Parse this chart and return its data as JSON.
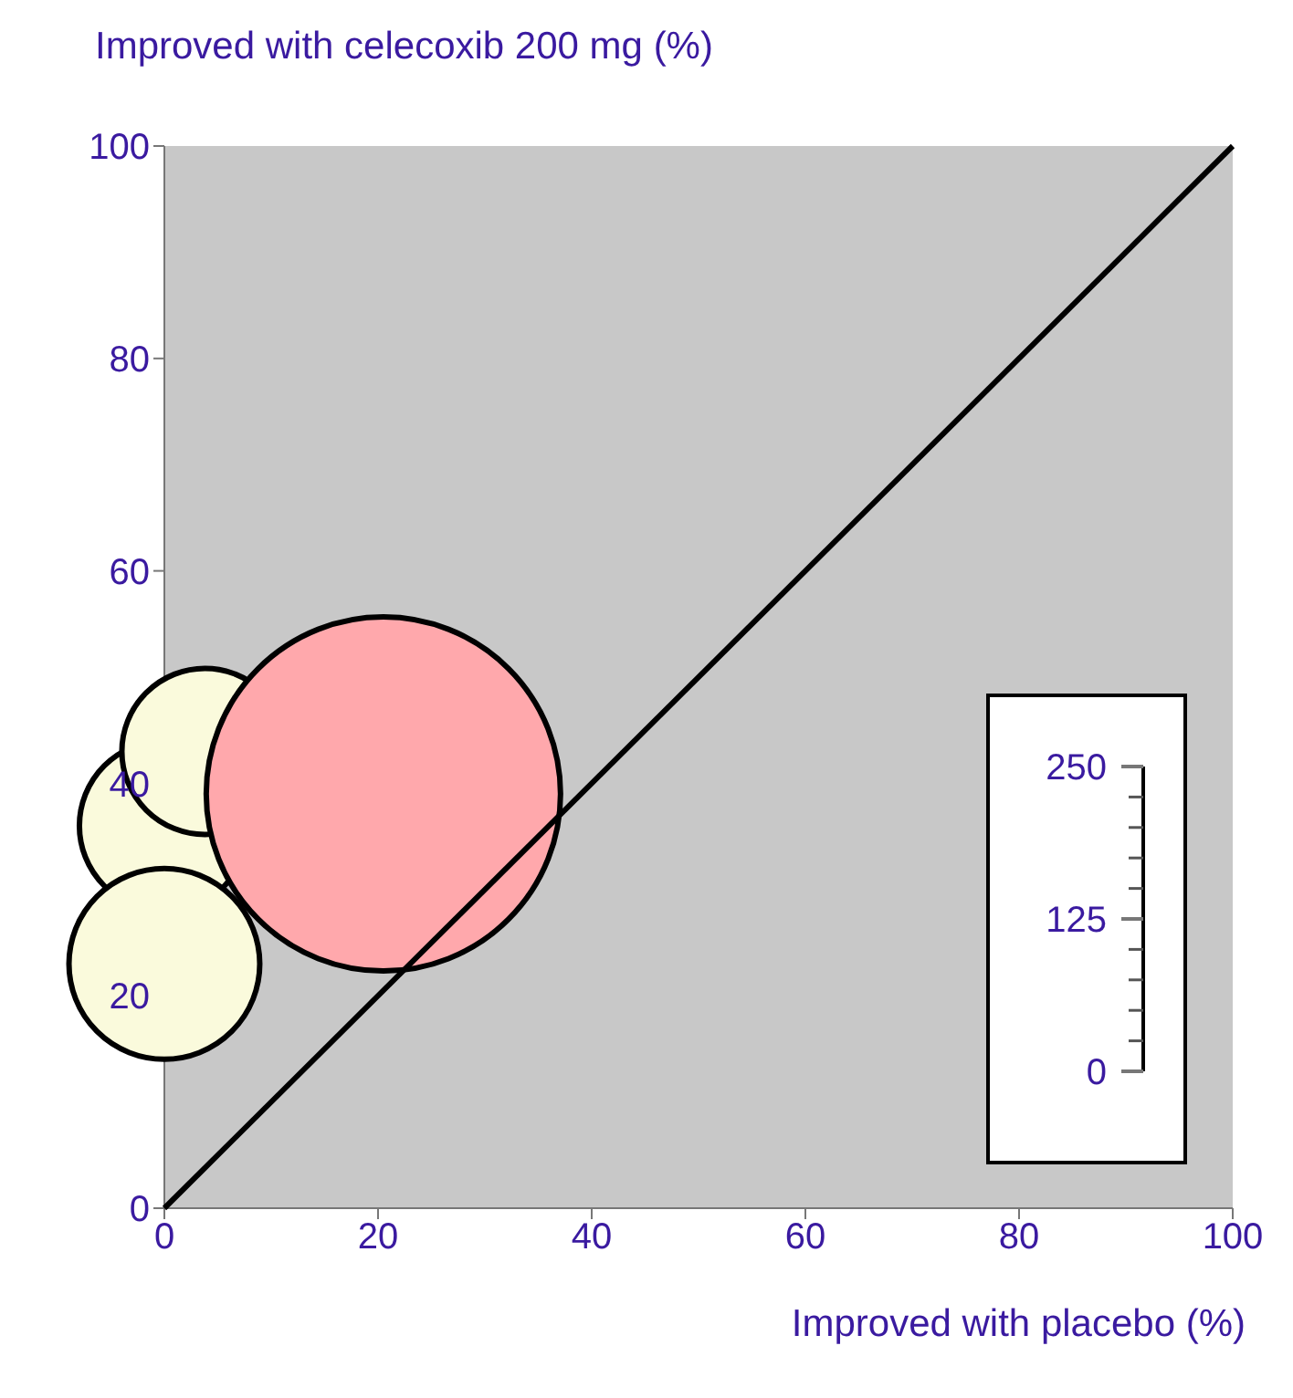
{
  "chart_data": {
    "type": "bubble",
    "xlabel": "Improved with placebo (%)",
    "ylabel": "Improved with celecoxib 200 mg (%)",
    "xlim": [
      0,
      100
    ],
    "ylim": [
      0,
      100
    ],
    "xticks": [
      0,
      20,
      40,
      60,
      80,
      100
    ],
    "yticks": [
      0,
      20,
      40,
      60,
      80,
      100
    ],
    "annotations": [
      "250",
      "125",
      "0"
    ],
    "series": [
      {
        "color": "#fafadc",
        "x": [
          0,
          3.8,
          0
        ],
        "values": [
          36,
          43,
          23
        ],
        "sizes": [
          0.23,
          0.22,
          0.29
        ]
      },
      {
        "color": "#ffa8ac",
        "x": [
          20.5
        ],
        "values": [
          39
        ],
        "sizes": [
          1
        ]
      },
      {
        "type": "line",
        "color": "#000000",
        "x": [
          0,
          100
        ],
        "values": [
          0,
          100
        ]
      }
    ]
  }
}
